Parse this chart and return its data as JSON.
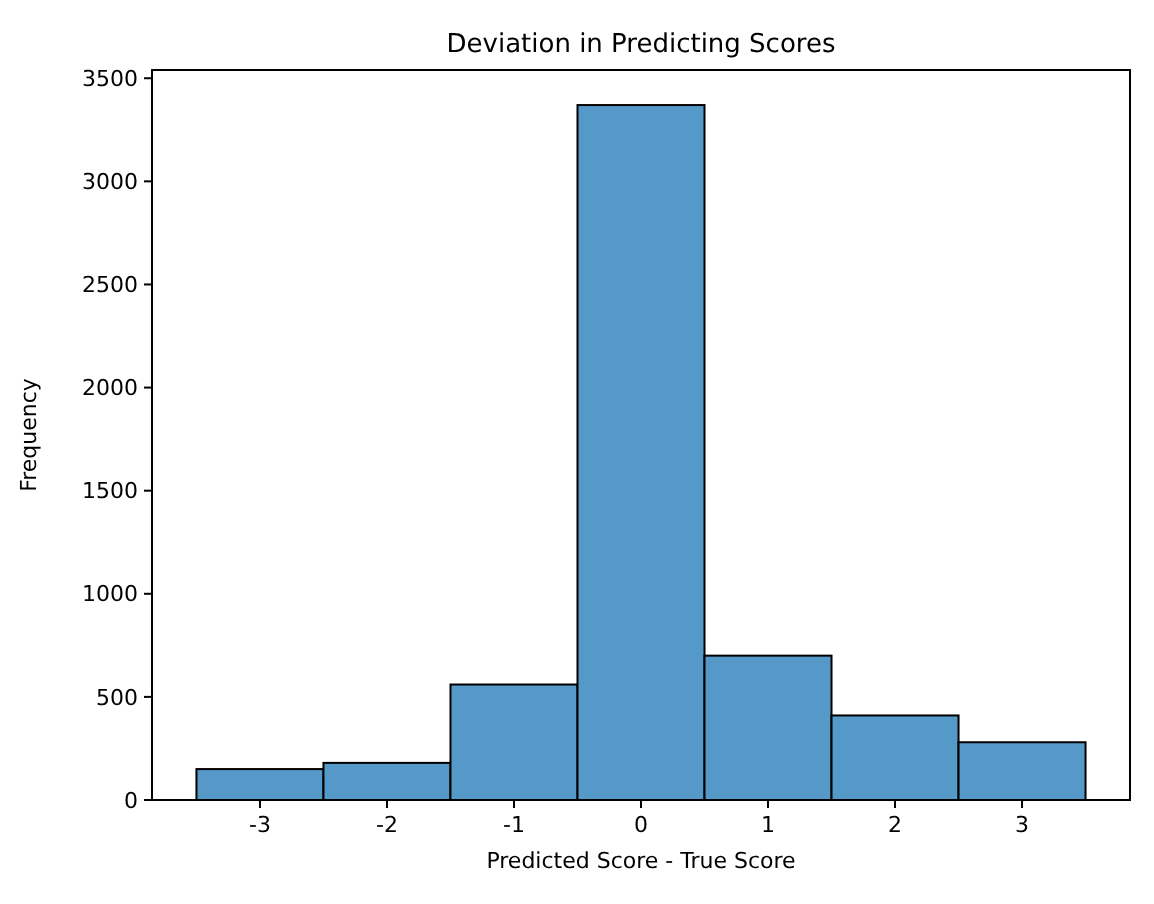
{
  "chart_data": {
    "type": "histogram",
    "title": "Deviation in Predicting Scores",
    "xlabel": "Predicted Score - True Score",
    "ylabel": "Frequency",
    "bins": [
      -3.5,
      -2.5,
      -1.5,
      -0.5,
      0.5,
      1.5,
      2.5,
      3.5
    ],
    "values": [
      150,
      180,
      560,
      3370,
      700,
      410,
      280
    ],
    "color": "#5599c8",
    "xlim": [
      -3.85,
      3.85
    ],
    "xticks": [
      -3,
      -2,
      -1,
      0,
      1,
      2,
      3
    ],
    "ylim": [
      0,
      3540
    ],
    "yticks": [
      0,
      500,
      1000,
      1500,
      2000,
      2500,
      3000,
      3500
    ],
    "grid": false
  }
}
